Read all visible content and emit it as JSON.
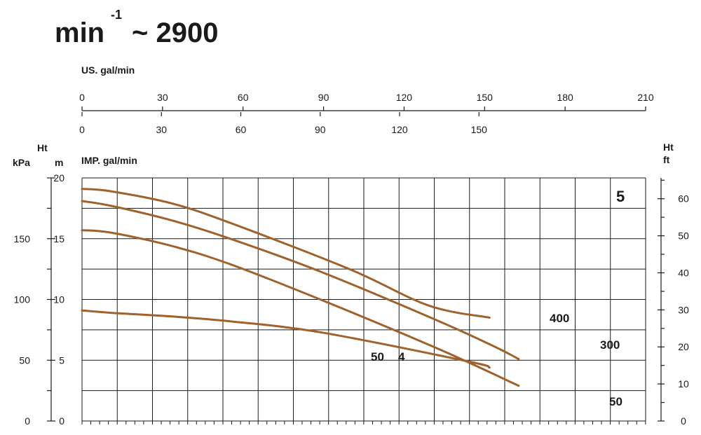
{
  "title": {
    "main": "min",
    "superscript": "-1",
    "suffix": "~ 2900"
  },
  "panel_label": "5",
  "chart_data": {
    "type": "line",
    "curve_color": "#a0612a",
    "x_axis_primary": {
      "unit": "IMP. gal/min",
      "ticks": [
        0,
        30,
        60,
        90,
        120,
        150
      ],
      "range": [
        0,
        185
      ]
    },
    "x_axis_secondary": {
      "unit": "US. gal/min",
      "ticks": [
        0,
        30,
        60,
        90,
        120,
        150,
        180,
        210
      ],
      "range": [
        0,
        222
      ]
    },
    "y_axis_m": {
      "title": "Ht",
      "unit": "m",
      "ticks": [
        0,
        5,
        10,
        15,
        20
      ],
      "range": [
        0,
        20
      ]
    },
    "y_axis_kpa": {
      "unit": "kPa",
      "ticks": [
        0,
        50,
        100,
        150
      ],
      "range": [
        0,
        196
      ]
    },
    "y_axis_ft": {
      "title": "Ht",
      "unit": "ft",
      "ticks": [
        0,
        10,
        20,
        30,
        40,
        50,
        60
      ],
      "range": [
        0,
        65.6
      ]
    },
    "grid": true,
    "series": [
      {
        "name": "400",
        "points": [
          [
            0,
            19.1
          ],
          [
            11,
            18.9
          ],
          [
            34,
            17.9
          ],
          [
            56,
            16.3
          ],
          [
            101,
            12.5
          ],
          [
            131,
            9.5
          ],
          [
            154,
            8.5
          ]
        ]
      },
      {
        "name": "300",
        "points": [
          [
            0,
            18.1
          ],
          [
            11,
            17.7
          ],
          [
            34,
            16.5
          ],
          [
            56,
            15.0
          ],
          [
            90,
            12.3
          ],
          [
            135,
            8.2
          ],
          [
            157,
            6.0
          ],
          [
            165,
            5.1
          ]
        ]
      },
      {
        "name": "50",
        "points": [
          [
            0,
            15.7
          ],
          [
            11,
            15.5
          ],
          [
            34,
            14.4
          ],
          [
            56,
            12.9
          ],
          [
            90,
            10.0
          ],
          [
            135,
            5.9
          ],
          [
            165,
            2.9
          ]
        ]
      },
      {
        "name": "4",
        "points": [
          [
            0,
            9.1
          ],
          [
            11,
            8.9
          ],
          [
            34,
            8.6
          ],
          [
            56,
            8.2
          ],
          [
            90,
            7.3
          ],
          [
            146,
            4.9
          ],
          [
            154,
            4.4
          ]
        ]
      }
    ],
    "curve_labels": [
      {
        "text": "400",
        "series": "400"
      },
      {
        "text": "300",
        "series": "300"
      },
      {
        "text": "50",
        "series": "50"
      },
      {
        "text": "50",
        "series": "4"
      },
      {
        "text": "4",
        "series": "4"
      }
    ]
  }
}
